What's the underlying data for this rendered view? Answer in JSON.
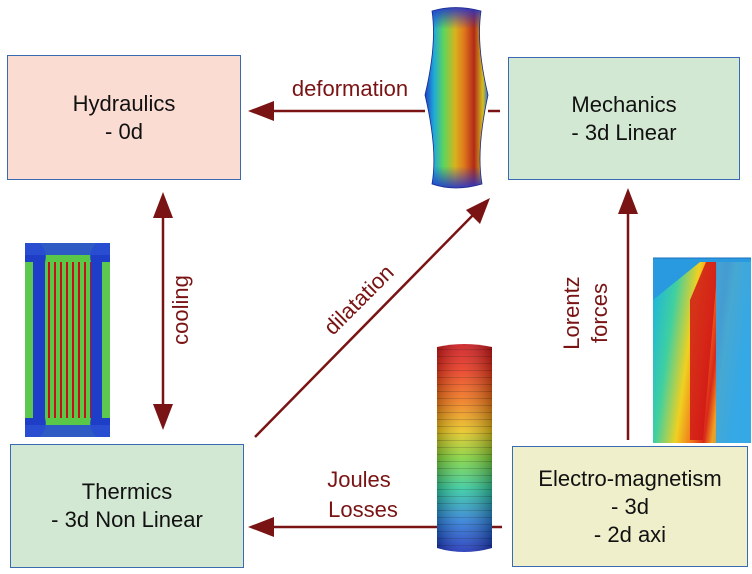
{
  "boxes": {
    "hydraulics": {
      "title": "Hydraulics",
      "detail": "- 0d"
    },
    "mechanics": {
      "title": "Mechanics",
      "detail": "- 3d Linear"
    },
    "thermics": {
      "title": "Thermics",
      "detail": "- 3d Non Linear"
    },
    "electromagnetism": {
      "title": "Electro-magnetism",
      "detail_1": "- 3d",
      "detail_2": "- 2d axi"
    }
  },
  "links": {
    "deformation": "deformation",
    "cooling": "cooling",
    "dilatation": "dilatation",
    "lorentz_line1": "Lorentz",
    "lorentz_line2": "forces",
    "joules_line1": "Joules",
    "joules_line2": "Losses"
  },
  "colors": {
    "arrow": "#7a1414",
    "hydraulics_fill": "#fbdcd2",
    "physics_fill": "#d3e8d3",
    "em_fill": "#efefcc",
    "box_border": "#3a6bb0"
  },
  "icons": {
    "mechanics_render": "deformed-cylinder-heatmap",
    "thermics_render": "cooled-tube-section-heatmap",
    "joules_render": "cylinder-temperature-bands",
    "em_render": "axisymmetric-field-map"
  }
}
